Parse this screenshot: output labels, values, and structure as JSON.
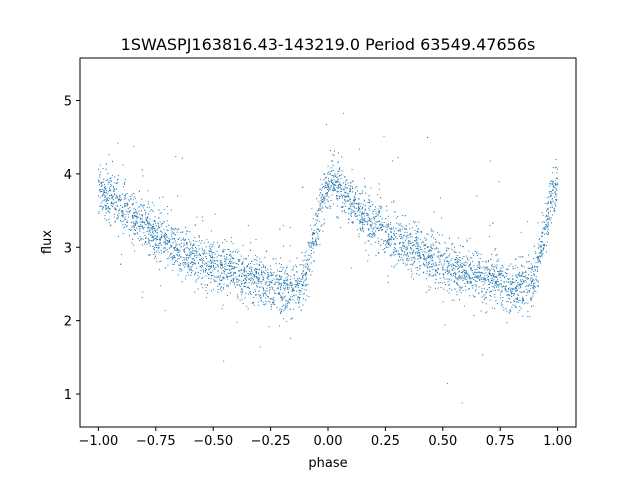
{
  "chart_data": {
    "type": "scatter",
    "title": "1SWASPJ163816.43-143219.0 Period 63549.47656s",
    "xlabel": "phase",
    "ylabel": "flux",
    "xlim": [
      -1.08,
      1.08
    ],
    "ylim": [
      0.55,
      5.58
    ],
    "xticks": [
      -1.0,
      -0.75,
      -0.5,
      -0.25,
      0.0,
      0.25,
      0.5,
      0.75,
      1.0
    ],
    "xtick_labels": [
      "−1.00",
      "−0.75",
      "−0.50",
      "−0.25",
      "0.00",
      "0.25",
      "0.50",
      "0.75",
      "1.00"
    ],
    "yticks": [
      1,
      2,
      3,
      4,
      5
    ],
    "ytick_labels": [
      "1",
      "2",
      "3",
      "4",
      "5"
    ],
    "grid": false,
    "point_color": "#1f77b4",
    "series": [
      {
        "x": [
          -1.0,
          -0.95,
          -0.9,
          -0.85,
          -0.8,
          -0.75,
          -0.7,
          -0.65,
          -0.6,
          -0.55,
          -0.5,
          -0.45,
          -0.4,
          -0.35,
          -0.3,
          -0.25,
          -0.2,
          -0.15,
          -0.12,
          -0.1,
          -0.08,
          -0.06,
          -0.04,
          -0.02,
          0.0,
          0.02,
          0.05,
          0.1,
          0.15,
          0.2,
          0.25,
          0.3,
          0.35,
          0.4,
          0.45,
          0.5,
          0.55,
          0.6,
          0.65,
          0.7,
          0.75,
          0.8,
          0.85,
          0.88,
          0.9,
          0.92,
          0.94,
          0.96,
          0.98,
          1.0
        ],
        "y": [
          3.8,
          3.7,
          3.55,
          3.4,
          3.3,
          3.18,
          3.08,
          2.98,
          2.9,
          2.82,
          2.75,
          2.7,
          2.65,
          2.6,
          2.55,
          2.5,
          2.45,
          2.42,
          2.45,
          2.6,
          2.85,
          3.15,
          3.45,
          3.7,
          3.88,
          3.92,
          3.8,
          3.6,
          3.45,
          3.32,
          3.2,
          3.1,
          3.0,
          2.92,
          2.85,
          2.78,
          2.72,
          2.67,
          2.62,
          2.58,
          2.52,
          2.48,
          2.44,
          2.45,
          2.6,
          2.85,
          3.15,
          3.45,
          3.7,
          3.85
        ]
      }
    ]
  }
}
